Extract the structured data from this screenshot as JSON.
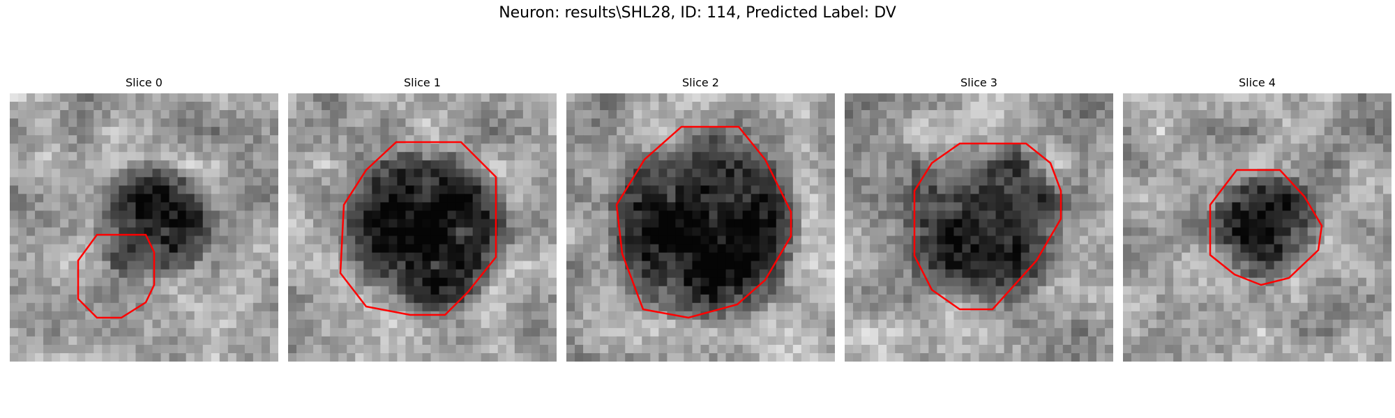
{
  "figure": {
    "suptitle": "Neuron: results\\SHL28, ID: 114, Predicted Label: DV",
    "contour_color": "#ff0000"
  },
  "panels": [
    {
      "title": "Slice 0",
      "seed": 11,
      "blob_cx": 0.52,
      "blob_cy": 0.46,
      "blob_r": 0.24,
      "blob_dark": 0.55
    },
    {
      "title": "Slice 1",
      "seed": 23,
      "blob_cx": 0.5,
      "blob_cy": 0.5,
      "blob_r": 0.33,
      "blob_dark": 0.65
    },
    {
      "title": "Slice 2",
      "seed": 37,
      "blob_cx": 0.5,
      "blob_cy": 0.49,
      "blob_r": 0.38,
      "blob_dark": 0.62
    },
    {
      "title": "Slice 3",
      "seed": 41,
      "blob_cx": 0.5,
      "blob_cy": 0.47,
      "blob_r": 0.34,
      "blob_dark": 0.45
    },
    {
      "title": "Slice 4",
      "seed": 53,
      "blob_cx": 0.52,
      "blob_cy": 0.48,
      "blob_r": 0.22,
      "blob_dark": 0.55
    }
  ]
}
